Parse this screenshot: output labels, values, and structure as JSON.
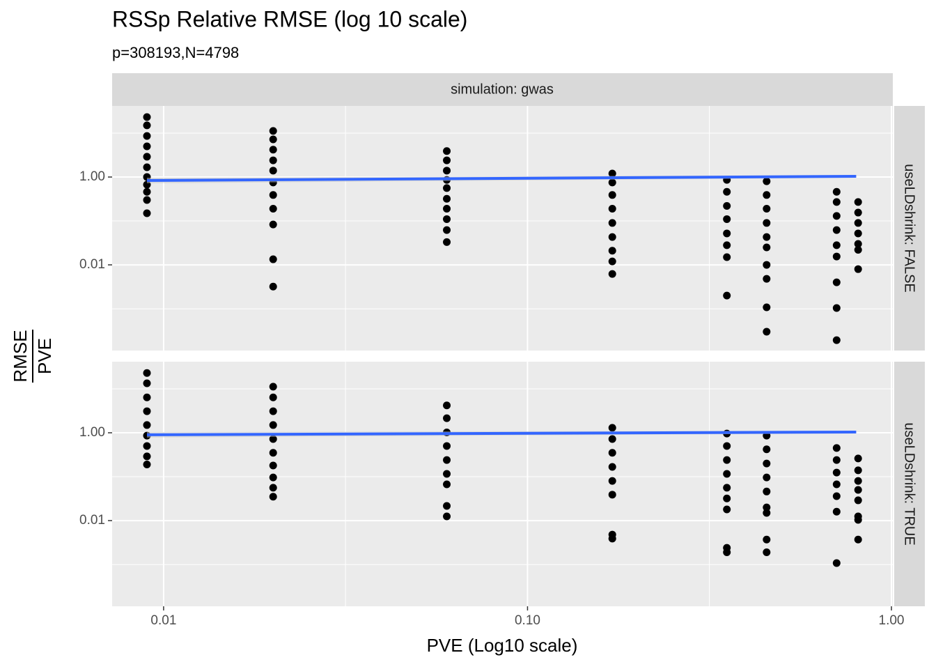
{
  "chart_data": {
    "type": "scatter",
    "title": "RSSp Relative RMSE (log 10 scale)",
    "subtitle": "p=308193,N=4798",
    "xlabel": "PVE (Log10 scale)",
    "ylabel": {
      "numerator": "RMSE",
      "denominator": "PVE"
    },
    "strip": "simulation: gwas",
    "log_x": true,
    "log_y": true,
    "grid": true,
    "point_color": "#000000",
    "fit_color": "#3366ff",
    "ribbon_color": "#c8c8c8",
    "xlim": [
      0.00722,
      1.0088
    ],
    "xticks": [
      0.01,
      {
        "value": 0.1,
        "label": "0.10"
      },
      {
        "value": 1,
        "label": "1.00"
      }
    ],
    "xminor": [
      0.0316,
      0.316
    ],
    "ylim": [
      0.000112,
      41.6
    ],
    "yticks": [
      {
        "value": 1,
        "label": "1.00"
      },
      0.01
    ],
    "yminor": [
      10,
      0.1,
      0.001
    ],
    "facets": [
      {
        "label": "useLDshrink: FALSE",
        "fit": {
          "x": [
            0.009,
            0.8
          ],
          "values": [
            0.833,
            1.037
          ]
        },
        "groups": [
          {
            "x": 0.009,
            "values": [
              23.2,
              15,
              8.6,
              5,
              2.9,
              1.67,
              1,
              0.67,
              0.46,
              0.3,
              0.15
            ]
          },
          {
            "x": 0.02,
            "values": [
              11.2,
              7.2,
              4.2,
              2.4,
              1.4,
              0.75,
              0.39,
              0.19,
              0.083,
              0.0134,
              0.0032
            ]
          },
          {
            "x": 0.06,
            "values": [
              3.9,
              2.4,
              1.4,
              0.86,
              0.56,
              0.32,
              0.19,
              0.11,
              0.062,
              0.033
            ]
          },
          {
            "x": 0.171,
            "values": [
              1.2,
              0.75,
              0.39,
              0.19,
              0.09,
              0.043,
              0.021,
              0.012,
              0.0062
            ]
          },
          {
            "x": 0.353,
            "values": [
              0.86,
              0.46,
              0.22,
              0.11,
              0.052,
              0.028,
              0.015,
              0.002
            ]
          },
          {
            "x": 0.454,
            "values": [
              0.8,
              0.39,
              0.19,
              0.09,
              0.043,
              0.025,
              0.01,
              0.0048,
              0.00108,
              0.0003
            ]
          },
          {
            "x": 0.707,
            "values": [
              0.46,
              0.27,
              0.13,
              0.062,
              0.028,
              0.0155,
              0.004,
              0.00104,
              0.000193
            ]
          },
          {
            "x": 0.81,
            "values": [
              0.27,
              0.155,
              0.09,
              0.052,
              0.03,
              0.022,
              0.008
            ]
          }
        ]
      },
      {
        "label": "useLDshrink: TRUE",
        "fit": {
          "x": [
            0.009,
            0.8
          ],
          "values": [
            0.9,
            1.04
          ]
        },
        "groups": [
          {
            "x": 0.009,
            "values": [
              23,
              13.4,
              6.4,
              3.1,
              1.5,
              0.86,
              0.5,
              0.29,
              0.19
            ]
          },
          {
            "x": 0.02,
            "values": [
              11.2,
              6.4,
              3.1,
              1.5,
              0.72,
              0.35,
              0.18,
              0.096,
              0.056,
              0.035
            ]
          },
          {
            "x": 0.06,
            "values": [
              4.2,
              2.15,
              1.02,
              0.5,
              0.24,
              0.116,
              0.067,
              0.0216,
              0.0125
            ]
          },
          {
            "x": 0.171,
            "values": [
              1.3,
              0.72,
              0.35,
              0.167,
              0.08,
              0.039,
              0.0048,
              0.0039
            ]
          },
          {
            "x": 0.353,
            "values": [
              0.96,
              0.5,
              0.24,
              0.116,
              0.056,
              0.032,
              0.018,
              0.0024,
              0.0019
            ]
          },
          {
            "x": 0.454,
            "values": [
              0.86,
              0.42,
              0.2,
              0.096,
              0.046,
              0.02,
              0.015,
              0.0037,
              0.0019
            ]
          },
          {
            "x": 0.707,
            "values": [
              0.45,
              0.24,
              0.124,
              0.067,
              0.036,
              0.016,
              0.00108
            ]
          },
          {
            "x": 0.81,
            "values": [
              0.26,
              0.14,
              0.08,
              0.05,
              0.029,
              0.0125,
              0.0104,
              0.0037
            ]
          }
        ]
      }
    ]
  }
}
